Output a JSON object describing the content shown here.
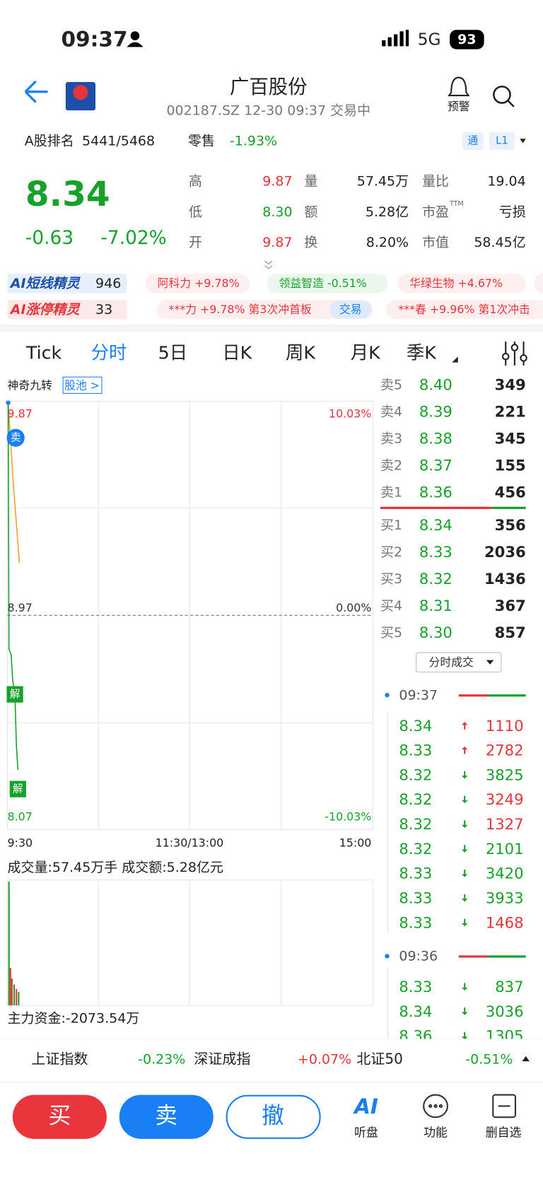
{
  "status": {
    "time": "09:37",
    "network": "5G",
    "battery": "93"
  },
  "header": {
    "title": "广百股份",
    "subtitle": "002187.SZ 12-30 09:37 交易中",
    "alert": "预警"
  },
  "info": {
    "rank_label": "A股排名",
    "rank": "5441/5468",
    "sector": "零售",
    "sector_change": "-1.93%",
    "tags": [
      "通",
      "L1"
    ]
  },
  "quote": {
    "price": "8.34",
    "change": "-0.63",
    "change_pct": "-7.02%",
    "stats": [
      {
        "label": "高",
        "value": "9.87",
        "color": "#e5343a"
      },
      {
        "label": "量",
        "value": "57.45万",
        "color": "#222222"
      },
      {
        "label": "量比",
        "value": "19.04",
        "color": "#222222"
      },
      {
        "label": "低",
        "value": "8.30",
        "color": "#17a02a"
      },
      {
        "label": "额",
        "value": "5.28亿",
        "color": "#222222"
      },
      {
        "label": "市盈",
        "sup": "TTM",
        "value": "亏损",
        "color": "#222222"
      },
      {
        "label": "开",
        "value": "9.87",
        "color": "#e5343a"
      },
      {
        "label": "换",
        "value": "8.20%",
        "color": "#222222"
      },
      {
        "label": "市值",
        "value": "58.45亿",
        "color": "#222222"
      }
    ]
  },
  "ai_rows": [
    {
      "label": "AI短线精灵",
      "count": "946",
      "items": [
        {
          "text": "阿科力 +9.78%",
          "color": "#e5343a"
        },
        {
          "text": "领益智造 -0.51%",
          "color": "#17a02a"
        },
        {
          "text": "华绿生物 +4.67%",
          "color": "#e5343a"
        }
      ]
    },
    {
      "label": "AI涨停精灵",
      "count": "33",
      "items": [
        {
          "text": "***力 +9.78% 第3次冲首板",
          "color": "#e5343a",
          "action": "交易"
        },
        {
          "text": "***春 +9.96% 第1次冲击",
          "color": "#e5343a"
        }
      ]
    }
  ],
  "tabs": {
    "items": [
      "Tick",
      "分时",
      "5日",
      "日K",
      "周K",
      "月K",
      "季K"
    ],
    "active": 1
  },
  "chart": {
    "indicator": "神奇九转",
    "pool": "股池 >",
    "price_labels": [
      "9.87",
      "8.97",
      "8.07"
    ],
    "pct_labels": [
      "10.03%",
      "0.00%",
      "-10.03%"
    ],
    "time_labels": [
      "9:30",
      "11:30/13:00",
      "15:00"
    ],
    "markers": [
      "卖",
      "解",
      "解"
    ],
    "volume_label": "成交量:57.45万手 成交额:5.28亿元",
    "capital_label": "主力资金:-2073.54万"
  },
  "order_book": {
    "asks": [
      {
        "label": "卖5",
        "price": "8.40",
        "volume": "349"
      },
      {
        "label": "卖4",
        "price": "8.39",
        "volume": "221"
      },
      {
        "label": "卖3",
        "price": "8.38",
        "volume": "345"
      },
      {
        "label": "卖2",
        "price": "8.37",
        "volume": "155"
      },
      {
        "label": "卖1",
        "price": "8.36",
        "volume": "456"
      }
    ],
    "bids": [
      {
        "label": "买1",
        "price": "8.34",
        "volume": "356"
      },
      {
        "label": "买2",
        "price": "8.33",
        "volume": "2036"
      },
      {
        "label": "买3",
        "price": "8.32",
        "volume": "1436"
      },
      {
        "label": "买4",
        "price": "8.31",
        "volume": "367"
      },
      {
        "label": "买5",
        "price": "8.30",
        "volume": "857"
      }
    ],
    "button": "分时成交"
  },
  "trades": [
    {
      "time": "09:37",
      "rows": [
        {
          "price": "8.34",
          "dir": "up",
          "volume": "1110",
          "color": "#e5343a"
        },
        {
          "price": "8.33",
          "dir": "up",
          "volume": "2782",
          "color": "#e5343a"
        },
        {
          "price": "8.32",
          "dir": "down",
          "volume": "3825",
          "color": "#17a02a"
        },
        {
          "price": "8.32",
          "dir": "down",
          "volume": "3249",
          "color": "#e5343a"
        },
        {
          "price": "8.32",
          "dir": "down",
          "volume": "1327",
          "color": "#e5343a"
        },
        {
          "price": "8.32",
          "dir": "down",
          "volume": "2101",
          "color": "#17a02a"
        },
        {
          "price": "8.33",
          "dir": "down",
          "volume": "3420",
          "color": "#17a02a"
        },
        {
          "price": "8.33",
          "dir": "down",
          "volume": "3933",
          "color": "#17a02a"
        },
        {
          "price": "8.33",
          "dir": "down",
          "volume": "1468",
          "color": "#e5343a"
        }
      ]
    },
    {
      "time": "09:36",
      "rows": [
        {
          "price": "8.33",
          "dir": "down",
          "volume": "837",
          "color": "#17a02a"
        },
        {
          "price": "8.34",
          "dir": "down",
          "volume": "3036",
          "color": "#17a02a"
        },
        {
          "price": "8.36",
          "dir": "down",
          "volume": "1305",
          "color": "#17a02a"
        }
      ]
    }
  ],
  "indices": [
    {
      "name": "上证指数",
      "change": "-0.23%",
      "color": "#17a02a"
    },
    {
      "name": "深证成指",
      "change": "+0.07%",
      "color": "#e5343a"
    },
    {
      "name": "北证50",
      "change": "-0.51%",
      "color": "#17a02a"
    }
  ],
  "actions": [
    "买",
    "卖",
    "撤"
  ],
  "nav": [
    {
      "icon": "AI",
      "label": "听盘"
    },
    {
      "label": "功能"
    },
    {
      "label": "删自选"
    }
  ]
}
